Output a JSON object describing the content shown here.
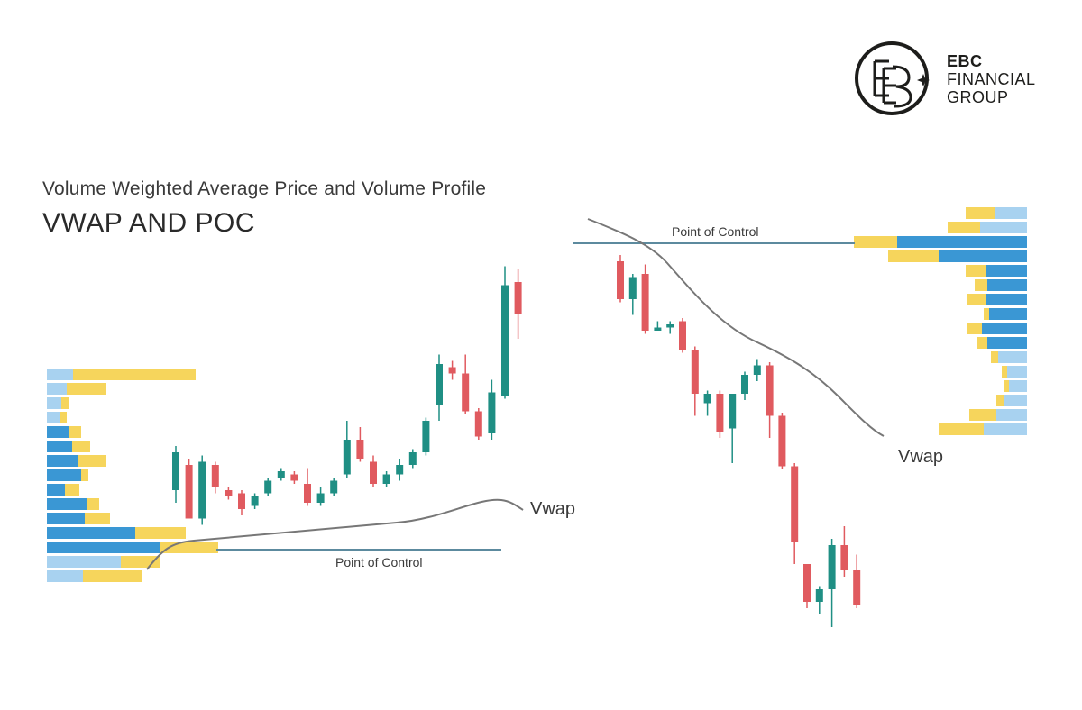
{
  "brand": {
    "line1": "EBC",
    "line2": "FINANCIAL",
    "line3": "GROUP"
  },
  "header": {
    "subtitle": "Volume Weighted Average Price and Volume Profile",
    "title": "VWAP AND POC"
  },
  "colors": {
    "bull": "#1f8f84",
    "bear": "#e05a5f",
    "profile_blue": "#3a97d4",
    "profile_light_blue": "#a8d2f0",
    "profile_yellow": "#f6d55c",
    "vwap_line": "#777777",
    "poc_line": "#5c8a9e"
  },
  "chart_data": [
    {
      "type": "candlestick",
      "series": [
        {
          "name": "candles",
          "ohlc": [
            [
              16,
              28,
              30,
              12
            ],
            [
              24,
              7,
              9,
              26
            ],
            [
              7,
              25,
              27,
              5
            ],
            [
              24,
              17,
              25,
              15
            ],
            [
              16,
              14,
              17,
              13
            ],
            [
              15,
              10,
              16,
              8
            ],
            [
              11,
              14,
              15,
              10
            ],
            [
              15,
              19,
              20,
              14
            ],
            [
              20,
              22,
              23,
              19
            ],
            [
              21,
              19,
              22,
              18
            ],
            [
              18,
              12,
              23,
              11
            ],
            [
              12,
              15,
              17,
              11
            ],
            [
              15,
              19,
              20,
              14
            ],
            [
              21,
              32,
              38,
              20
            ],
            [
              32,
              26,
              36,
              25
            ],
            [
              25,
              18,
              27,
              17
            ],
            [
              18,
              21,
              22,
              17
            ],
            [
              21,
              24,
              26,
              19
            ],
            [
              24,
              28,
              29,
              23
            ],
            [
              28,
              38,
              39,
              27
            ],
            [
              43,
              56,
              59,
              38
            ],
            [
              55,
              53,
              57,
              51
            ],
            [
              53,
              41,
              59,
              40
            ],
            [
              41,
              33,
              42,
              32
            ],
            [
              34,
              47,
              51,
              32
            ],
            [
              46,
              81,
              87,
              45
            ],
            [
              82,
              72,
              86,
              64
            ]
          ]
        }
      ],
      "lines": [
        {
          "name": "Vwap"
        },
        {
          "name": "Point of Control",
          "value": 4
        }
      ]
    },
    {
      "type": "candlestick",
      "series": [
        {
          "name": "candles",
          "ohlc": [
            [
              92,
              80,
              94,
              79
            ],
            [
              80,
              87,
              88,
              75
            ],
            [
              88,
              70,
              91,
              69
            ],
            [
              70,
              71,
              73,
              70
            ],
            [
              71,
              72,
              73,
              69
            ],
            [
              73,
              64,
              74,
              63
            ],
            [
              64,
              50,
              65,
              43
            ],
            [
              47,
              50,
              51,
              43
            ],
            [
              50,
              38,
              51,
              36
            ],
            [
              39,
              50,
              50,
              28
            ],
            [
              50,
              56,
              57,
              48
            ],
            [
              56,
              59,
              61,
              54
            ],
            [
              59,
              43,
              60,
              36
            ],
            [
              43,
              27,
              44,
              26
            ],
            [
              27,
              3,
              28,
              -4
            ],
            [
              -4,
              -16,
              -15,
              -18
            ],
            [
              -16,
              -12,
              -11,
              -20
            ],
            [
              -12,
              2,
              4,
              -24
            ],
            [
              2,
              -6,
              8,
              -8
            ],
            [
              -6,
              -17,
              -1,
              -18
            ]
          ]
        }
      ],
      "lines": [
        {
          "name": "Point of Control",
          "value": 95
        },
        {
          "name": "Vwap"
        }
      ]
    }
  ]
}
